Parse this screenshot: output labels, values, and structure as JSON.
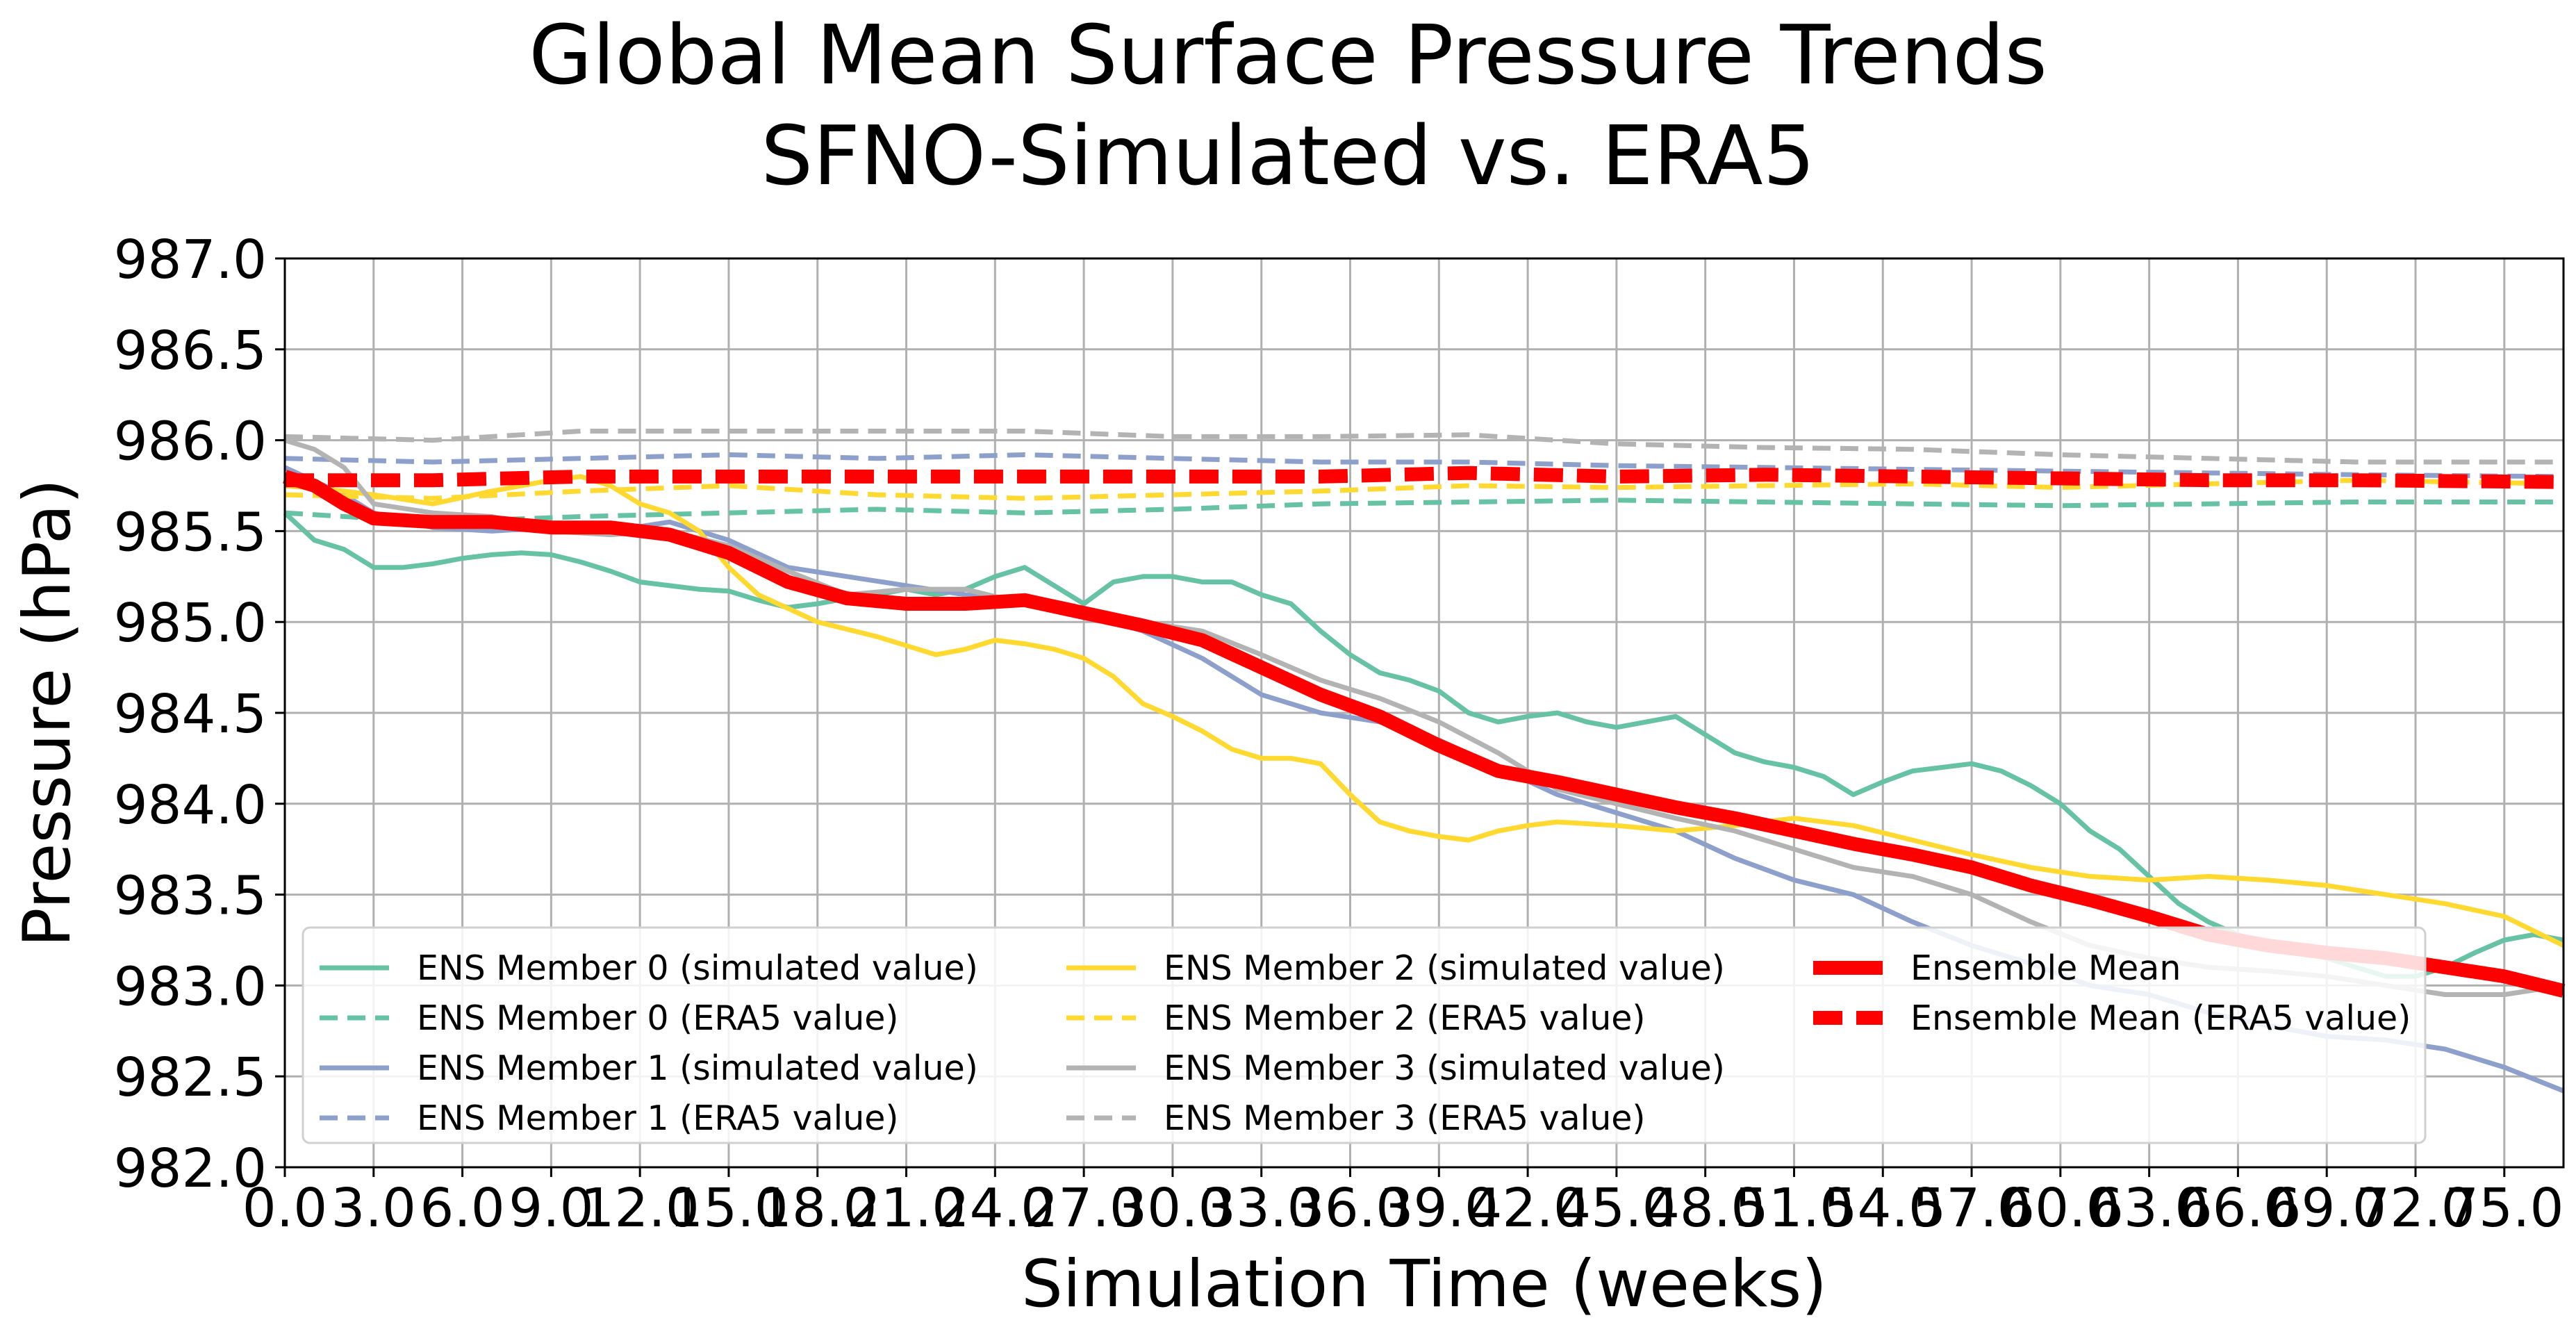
{
  "chart_data": {
    "type": "line",
    "title": "Global Mean Surface Pressure Trends",
    "subtitle": "SFNO-Simulated vs. ERA5",
    "xlabel": "Simulation Time (weeks)",
    "ylabel": "Pressure (hPa)",
    "xlim": [
      0,
      77
    ],
    "ylim": [
      982.0,
      987.0
    ],
    "grid": true,
    "legend_position": "lower-left",
    "legend_columns": 3,
    "x_ticks": [
      0,
      3,
      6,
      9,
      12,
      15,
      18,
      21,
      24,
      27,
      30,
      33,
      36,
      39,
      42,
      45,
      48,
      51,
      54,
      57,
      60,
      63,
      66,
      69,
      72,
      75
    ],
    "x_tick_labels": [
      "0.0",
      "3.0",
      "6.0",
      "9.0",
      "12.0",
      "15.0",
      "18.0",
      "21.0",
      "24.0",
      "27.0",
      "30.0",
      "33.0",
      "36.0",
      "39.0",
      "42.0",
      "45.0",
      "48.0",
      "51.0",
      "54.0",
      "57.0",
      "60.0",
      "63.0",
      "66.0",
      "69.0",
      "72.0",
      "75.0"
    ],
    "y_ticks": [
      982.0,
      982.5,
      983.0,
      983.5,
      984.0,
      984.5,
      985.0,
      985.5,
      986.0,
      986.5,
      987.0
    ],
    "y_tick_labels": [
      "982.0",
      "982.5",
      "983.0",
      "983.5",
      "984.0",
      "984.5",
      "985.0",
      "985.5",
      "986.0",
      "986.5",
      "987.0"
    ],
    "series": [
      {
        "name": "ENS Member 0 (simulated value)",
        "color": "#66c2a5",
        "style": "solid",
        "width": "normal",
        "x": [
          0,
          1,
          2,
          3,
          4,
          5,
          6,
          7,
          8,
          9,
          10,
          11,
          12,
          13,
          14,
          15,
          16,
          17,
          18,
          19,
          20,
          21,
          22,
          23,
          24,
          25,
          26,
          27,
          28,
          29,
          30,
          31,
          32,
          33,
          34,
          35,
          36,
          37,
          38,
          39,
          40,
          41,
          42,
          43,
          44,
          45,
          46,
          47,
          48,
          49,
          50,
          51,
          52,
          53,
          54,
          55,
          56,
          57,
          58,
          59,
          60,
          61,
          62,
          63,
          64,
          65,
          66,
          67,
          68,
          69,
          70,
          71,
          72,
          73,
          74,
          75,
          76,
          77
        ],
        "y": [
          985.6,
          985.45,
          985.4,
          985.3,
          985.3,
          985.32,
          985.35,
          985.37,
          985.38,
          985.37,
          985.33,
          985.28,
          985.22,
          985.2,
          985.18,
          985.17,
          985.12,
          985.08,
          985.1,
          985.13,
          985.15,
          985.18,
          985.15,
          985.18,
          985.25,
          985.3,
          985.2,
          985.1,
          985.22,
          985.25,
          985.25,
          985.22,
          985.22,
          985.15,
          985.1,
          984.95,
          984.82,
          984.72,
          984.68,
          984.62,
          984.5,
          984.45,
          984.48,
          984.5,
          984.45,
          984.42,
          984.45,
          984.48,
          984.38,
          984.28,
          984.23,
          984.2,
          984.15,
          984.05,
          984.12,
          984.18,
          984.2,
          984.22,
          984.18,
          984.1,
          984.0,
          983.85,
          983.75,
          983.6,
          983.45,
          983.35,
          983.28,
          983.22,
          983.2,
          983.15,
          983.1,
          983.05,
          983.05,
          983.1,
          983.18,
          983.25,
          983.28,
          983.25
        ]
      },
      {
        "name": "ENS Member 0 (ERA5 value)",
        "color": "#66c2a5",
        "style": "dashed",
        "width": "normal",
        "x": [
          0,
          5,
          10,
          15,
          20,
          25,
          30,
          35,
          40,
          45,
          50,
          55,
          60,
          65,
          70,
          77
        ],
        "y": [
          985.6,
          985.55,
          985.58,
          985.6,
          985.62,
          985.6,
          985.62,
          985.65,
          985.66,
          985.67,
          985.66,
          985.65,
          985.64,
          985.65,
          985.66,
          985.66
        ]
      },
      {
        "name": "ENS Member 1 (simulated value)",
        "color": "#8da0cb",
        "style": "solid",
        "width": "normal",
        "x": [
          0,
          2,
          3,
          5,
          7,
          9,
          11,
          13,
          15,
          17,
          19,
          21,
          23,
          25,
          27,
          29,
          31,
          33,
          35,
          37,
          39,
          41,
          43,
          45,
          47,
          49,
          51,
          53,
          55,
          57,
          59,
          61,
          63,
          65,
          67,
          69,
          71,
          73,
          75,
          77
        ],
        "y": [
          985.85,
          985.7,
          985.6,
          985.52,
          985.5,
          985.52,
          985.5,
          985.55,
          985.45,
          985.3,
          985.25,
          985.2,
          985.15,
          985.12,
          985.05,
          984.95,
          984.8,
          984.6,
          984.5,
          984.45,
          984.35,
          984.2,
          984.05,
          983.95,
          983.85,
          983.7,
          983.58,
          983.5,
          983.35,
          983.22,
          983.12,
          983.0,
          982.95,
          982.85,
          982.78,
          982.72,
          982.7,
          982.65,
          982.55,
          982.42
        ]
      },
      {
        "name": "ENS Member 1 (ERA5 value)",
        "color": "#8da0cb",
        "style": "dashed",
        "width": "normal",
        "x": [
          0,
          5,
          10,
          15,
          20,
          25,
          30,
          35,
          40,
          45,
          50,
          55,
          60,
          65,
          70,
          77
        ],
        "y": [
          985.9,
          985.88,
          985.9,
          985.92,
          985.9,
          985.92,
          985.9,
          985.88,
          985.88,
          985.86,
          985.85,
          985.84,
          985.83,
          985.82,
          985.81,
          985.8
        ]
      },
      {
        "name": "ENS Member 2 (simulated value)",
        "color": "#ffd92f",
        "style": "solid",
        "width": "normal",
        "x": [
          0,
          2,
          3,
          5,
          7,
          9,
          10,
          11,
          12,
          13,
          14,
          15,
          16,
          18,
          20,
          22,
          23,
          24,
          25,
          26,
          27,
          28,
          29,
          30,
          31,
          32,
          33,
          34,
          35,
          36,
          37,
          38,
          39,
          40,
          41,
          42,
          43,
          45,
          47,
          49,
          51,
          53,
          55,
          57,
          59,
          61,
          63,
          65,
          67,
          69,
          71,
          73,
          75,
          77
        ],
        "y": [
          985.75,
          985.72,
          985.7,
          985.65,
          985.72,
          985.78,
          985.8,
          985.75,
          985.65,
          985.6,
          985.5,
          985.3,
          985.15,
          985.0,
          984.92,
          984.82,
          984.85,
          984.9,
          984.88,
          984.85,
          984.8,
          984.7,
          984.55,
          984.48,
          984.4,
          984.3,
          984.25,
          984.25,
          984.22,
          984.05,
          983.9,
          983.85,
          983.82,
          983.8,
          983.85,
          983.88,
          983.9,
          983.88,
          983.85,
          983.88,
          983.92,
          983.88,
          983.8,
          983.72,
          983.65,
          983.6,
          983.58,
          983.6,
          983.58,
          983.55,
          983.5,
          983.45,
          983.38,
          983.22
        ]
      },
      {
        "name": "ENS Member 2 (ERA5 value)",
        "color": "#ffd92f",
        "style": "dashed",
        "width": "normal",
        "x": [
          0,
          5,
          10,
          15,
          20,
          25,
          30,
          35,
          40,
          45,
          50,
          55,
          60,
          65,
          70,
          77
        ],
        "y": [
          985.7,
          985.68,
          985.72,
          985.75,
          985.7,
          985.68,
          985.7,
          985.72,
          985.75,
          985.74,
          985.75,
          985.76,
          985.74,
          985.76,
          985.78,
          985.76
        ]
      },
      {
        "name": "ENS Member 3 (simulated value)",
        "color": "#b3b3b3",
        "style": "solid",
        "width": "normal",
        "x": [
          0,
          1,
          2,
          3,
          5,
          7,
          9,
          11,
          13,
          15,
          17,
          19,
          21,
          23,
          25,
          27,
          29,
          31,
          33,
          35,
          37,
          39,
          41,
          43,
          45,
          47,
          49,
          51,
          53,
          55,
          57,
          59,
          61,
          63,
          65,
          67,
          69,
          71,
          73,
          75,
          77
        ],
        "y": [
          986.0,
          985.95,
          985.85,
          985.65,
          985.6,
          985.58,
          985.5,
          985.48,
          985.5,
          985.42,
          985.28,
          985.15,
          985.18,
          985.18,
          985.1,
          985.05,
          985.0,
          984.95,
          984.82,
          984.68,
          984.58,
          984.45,
          984.28,
          984.08,
          984.0,
          983.92,
          983.85,
          983.75,
          983.65,
          983.6,
          983.5,
          983.35,
          983.22,
          983.15,
          983.1,
          983.08,
          983.05,
          983.0,
          982.95,
          982.95,
          983.0
        ]
      },
      {
        "name": "ENS Member 3 (ERA5 value)",
        "color": "#b3b3b3",
        "style": "dashed",
        "width": "normal",
        "x": [
          0,
          5,
          10,
          15,
          20,
          25,
          30,
          35,
          40,
          45,
          50,
          55,
          60,
          65,
          70,
          77
        ],
        "y": [
          986.02,
          986.0,
          986.05,
          986.05,
          986.05,
          986.05,
          986.02,
          986.02,
          986.03,
          985.98,
          985.96,
          985.95,
          985.92,
          985.9,
          985.88,
          985.88
        ]
      },
      {
        "name": "Ensemble Mean",
        "color": "#ff0000",
        "style": "solid",
        "width": "thick",
        "x": [
          0,
          1,
          2,
          3,
          5,
          7,
          9,
          11,
          13,
          15,
          17,
          19,
          21,
          23,
          25,
          27,
          29,
          31,
          33,
          35,
          37,
          39,
          41,
          43,
          45,
          47,
          49,
          51,
          53,
          55,
          57,
          59,
          61,
          63,
          65,
          67,
          69,
          71,
          73,
          75,
          77
        ],
        "y": [
          985.8,
          985.75,
          985.65,
          985.57,
          985.55,
          985.55,
          985.52,
          985.52,
          985.48,
          985.38,
          985.22,
          985.13,
          985.1,
          985.1,
          985.12,
          985.05,
          984.98,
          984.9,
          984.75,
          984.6,
          984.48,
          984.32,
          984.18,
          984.12,
          984.05,
          983.98,
          983.92,
          983.85,
          983.78,
          983.72,
          983.65,
          983.55,
          983.47,
          983.38,
          983.28,
          983.22,
          983.18,
          983.15,
          983.1,
          983.05,
          982.97
        ]
      },
      {
        "name": "Ensemble Mean (ERA5 value)",
        "color": "#ff0000",
        "style": "dashed",
        "width": "thick",
        "x": [
          0,
          5,
          10,
          15,
          20,
          25,
          30,
          35,
          40,
          45,
          50,
          55,
          60,
          65,
          70,
          77
        ],
        "y": [
          985.78,
          985.78,
          985.8,
          985.8,
          985.8,
          985.8,
          985.8,
          985.8,
          985.82,
          985.8,
          985.81,
          985.8,
          985.79,
          985.78,
          985.78,
          985.77
        ]
      }
    ],
    "legend_order": [
      "ENS Member 0 (simulated value)",
      "ENS Member 0 (ERA5 value)",
      "ENS Member 1 (simulated value)",
      "ENS Member 1 (ERA5 value)",
      "ENS Member 2 (simulated value)",
      "ENS Member 2 (ERA5 value)",
      "ENS Member 3 (simulated value)",
      "ENS Member 3 (ERA5 value)",
      "Ensemble Mean",
      "Ensemble Mean (ERA5 value)"
    ]
  }
}
